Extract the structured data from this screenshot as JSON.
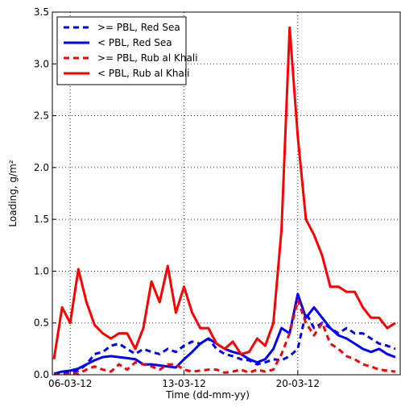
{
  "chart_data": {
    "type": "line",
    "x_label": "Time (dd-mm-yy)",
    "y_label": "Loading, g/m²",
    "x": [
      5.0,
      5.5,
      6.0,
      6.5,
      7.0,
      7.5,
      8.0,
      8.5,
      9.0,
      9.5,
      10.0,
      10.5,
      11.0,
      11.5,
      12.0,
      12.5,
      13.0,
      13.5,
      14.0,
      14.5,
      15.0,
      15.5,
      16.0,
      16.5,
      17.0,
      17.5,
      18.0,
      18.5,
      19.0,
      19.5,
      20.0,
      20.5,
      21.0,
      21.5,
      22.0,
      22.5,
      23.0,
      23.5,
      24.0,
      24.5,
      25.0,
      25.5,
      26.0
    ],
    "series": [
      {
        "name": ">= PBL, Red Sea",
        "color": "#0000ff",
        "linestyle": "dashed",
        "values": [
          0.0,
          0.01,
          0.02,
          0.04,
          0.1,
          0.2,
          0.22,
          0.28,
          0.3,
          0.25,
          0.2,
          0.25,
          0.22,
          0.2,
          0.25,
          0.22,
          0.28,
          0.32,
          0.3,
          0.35,
          0.25,
          0.2,
          0.18,
          0.15,
          0.14,
          0.1,
          0.12,
          0.15,
          0.14,
          0.18,
          0.25,
          0.6,
          0.45,
          0.5,
          0.45,
          0.4,
          0.45,
          0.4,
          0.4,
          0.35,
          0.3,
          0.28,
          0.25
        ]
      },
      {
        "name": "< PBL, Red Sea",
        "color": "#0000ff",
        "linestyle": "solid",
        "values": [
          0.01,
          0.03,
          0.04,
          0.06,
          0.1,
          0.14,
          0.17,
          0.18,
          0.17,
          0.16,
          0.15,
          0.1,
          0.1,
          0.09,
          0.08,
          0.07,
          0.15,
          0.22,
          0.3,
          0.35,
          0.3,
          0.25,
          0.22,
          0.2,
          0.15,
          0.12,
          0.15,
          0.25,
          0.45,
          0.4,
          0.78,
          0.55,
          0.65,
          0.55,
          0.45,
          0.38,
          0.35,
          0.3,
          0.25,
          0.22,
          0.25,
          0.2,
          0.17
        ]
      },
      {
        "name": ">= PBL, Rub al Khali",
        "color": "#ff0000",
        "linestyle": "dashed",
        "values": [
          0.0,
          0.0,
          0.01,
          0.01,
          0.05,
          0.08,
          0.05,
          0.03,
          0.1,
          0.05,
          0.12,
          0.1,
          0.08,
          0.05,
          0.1,
          0.1,
          0.05,
          0.03,
          0.04,
          0.05,
          0.05,
          0.02,
          0.03,
          0.05,
          0.02,
          0.05,
          0.03,
          0.05,
          0.2,
          0.4,
          0.72,
          0.5,
          0.38,
          0.5,
          0.3,
          0.25,
          0.18,
          0.15,
          0.1,
          0.08,
          0.05,
          0.04,
          0.03
        ]
      },
      {
        "name": "< PBL, Rub al Khali",
        "color": "#ff0000",
        "linestyle": "solid",
        "values": [
          0.15,
          0.65,
          0.5,
          1.02,
          0.7,
          0.48,
          0.4,
          0.35,
          0.4,
          0.4,
          0.25,
          0.45,
          0.9,
          0.7,
          1.05,
          0.6,
          0.85,
          0.6,
          0.45,
          0.45,
          0.3,
          0.25,
          0.32,
          0.2,
          0.22,
          0.35,
          0.28,
          0.5,
          1.4,
          3.35,
          2.3,
          1.5,
          1.35,
          1.15,
          0.85,
          0.85,
          0.8,
          0.8,
          0.65,
          0.55,
          0.55,
          0.45,
          0.5
        ]
      }
    ],
    "xlim": [
      4.9,
      26.3
    ],
    "xticks": [
      {
        "value": 6,
        "label": "06-03-12"
      },
      {
        "value": 13,
        "label": "13-03-12"
      },
      {
        "value": 20,
        "label": "20-03-12"
      }
    ],
    "ylim": [
      0,
      3.5
    ],
    "yticks": [
      {
        "value": 0,
        "label": "0.0"
      },
      0.5,
      {
        "value": 1,
        "label": "1.0"
      },
      1.5,
      {
        "value": 2,
        "label": "2.0"
      },
      2.5,
      {
        "value": 3,
        "label": "3.0"
      },
      3.5
    ],
    "grid": true,
    "legend": "upper left"
  }
}
